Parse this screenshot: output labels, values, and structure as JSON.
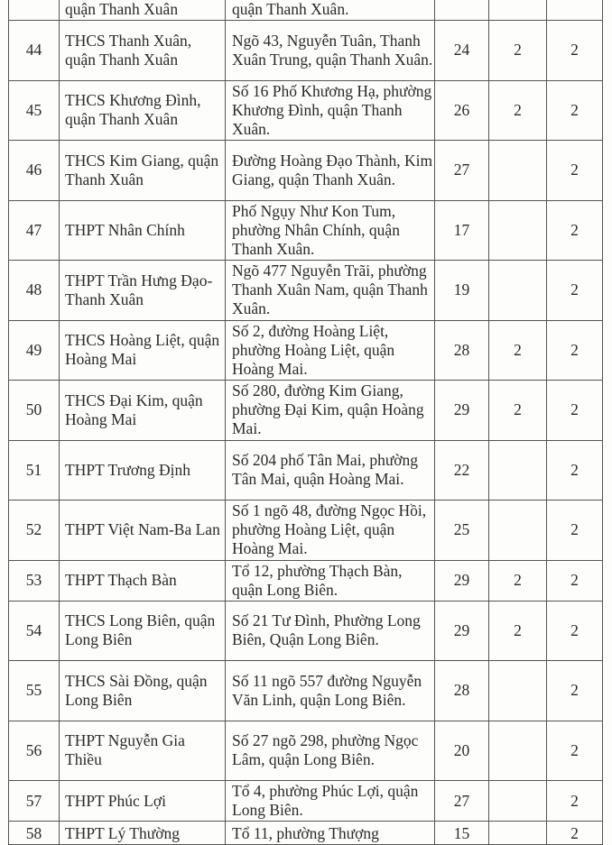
{
  "rows": [
    {
      "no": "",
      "name": "quận Thanh Xuân",
      "address": "quận Thanh Xuân.",
      "c4": "",
      "c5": "",
      "c6": ""
    },
    {
      "no": "44",
      "name": "THCS Thanh Xuân, quận Thanh Xuân",
      "address": "Ngõ 43, Nguyễn Tuân, Thanh Xuân Trung, quận Thanh Xuân.",
      "c4": "24",
      "c5": "2",
      "c6": "2"
    },
    {
      "no": "45",
      "name": "THCS Khương Đình, quận Thanh Xuân",
      "address": "Số 16 Phố Khương Hạ, phường Khương Đình, quận Thanh Xuân.",
      "c4": "26",
      "c5": "2",
      "c6": "2"
    },
    {
      "no": "46",
      "name": "THCS Kim Giang, quận Thanh Xuân",
      "address": "Đường Hoàng Đạo Thành, Kim Giang, quận Thanh Xuân.",
      "c4": "27",
      "c5": "",
      "c6": "2"
    },
    {
      "no": "47",
      "name": "THPT Nhân Chính",
      "address": "Phố Ngụy Như Kon Tum, phường Nhân Chính, quận Thanh Xuân.",
      "c4": "17",
      "c5": "",
      "c6": "2"
    },
    {
      "no": "48",
      "name": "THPT Trần Hưng Đạo-Thanh Xuân",
      "address": "Ngõ 477 Nguyễn Trãi, phường Thanh Xuân Nam, quận Thanh Xuân.",
      "c4": "19",
      "c5": "",
      "c6": "2"
    },
    {
      "no": "49",
      "name": "THCS Hoàng Liệt, quận Hoàng Mai",
      "address": "Số 2, đường Hoàng Liệt, phường Hoàng Liệt, quận Hoàng Mai.",
      "c4": "28",
      "c5": "2",
      "c6": "2"
    },
    {
      "no": "50",
      "name": "THCS Đại Kim, quận Hoàng Mai",
      "address": "Số 280, đường Kim Giang, phường Đại Kim, quận Hoàng Mai.",
      "c4": "29",
      "c5": "2",
      "c6": "2"
    },
    {
      "no": "51",
      "name": "THPT Trương Định",
      "address": "Số 204 phố Tân Mai, phường Tân Mai, quận Hoàng Mai.",
      "c4": "22",
      "c5": "",
      "c6": "2"
    },
    {
      "no": "52",
      "name": "THPT Việt Nam-Ba Lan",
      "address": "Số 1 ngõ 48, đường Ngọc Hồi, phường Hoàng Liệt, quận Hoàng Mai.",
      "c4": "25",
      "c5": "",
      "c6": "2"
    },
    {
      "no": "53",
      "name": "THPT Thạch Bàn",
      "address": "Tổ 12, phường Thạch Bàn, quận Long Biên.",
      "c4": "29",
      "c5": "2",
      "c6": "2"
    },
    {
      "no": "54",
      "name": "THCS Long Biên, quận Long Biên",
      "address": "Số 21 Tư Đình, Phường Long Biên, Quận Long Biên.",
      "c4": "29",
      "c5": "2",
      "c6": "2"
    },
    {
      "no": "55",
      "name": "THCS Sài Đồng, quận Long Biên",
      "address": "Số 11 ngõ 557 đường Nguyễn Văn Linh, quận Long Biên.",
      "c4": "28",
      "c5": "",
      "c6": "2"
    },
    {
      "no": "56",
      "name": "THPT Nguyễn Gia Thiều",
      "address": "Số 27 ngõ 298, phường Ngọc Lâm, quận Long Biên.",
      "c4": "20",
      "c5": "",
      "c6": "2"
    },
    {
      "no": "57",
      "name": "THPT Phúc Lợi",
      "address": "Tổ 4, phường Phúc Lợi, quận Long Biên.",
      "c4": "27",
      "c5": "",
      "c6": "2"
    },
    {
      "no": "58",
      "name": "THPT Lý Thường",
      "address": "Tổ 11, phường Thượng",
      "c4": "15",
      "c5": "",
      "c6": "2"
    }
  ]
}
